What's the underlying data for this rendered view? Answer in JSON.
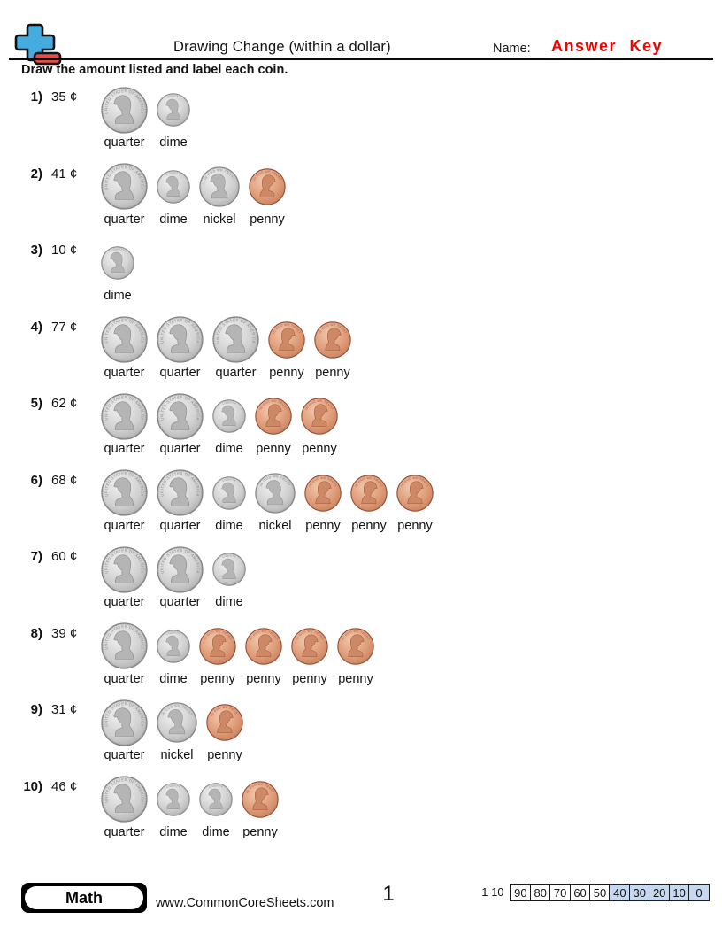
{
  "colors": {
    "answer_key": "#f60000",
    "score_highlight": "#c6d9f1",
    "logo_blue": "#45ace0",
    "logo_red": "#e24c4c",
    "silver_light": "#f2f2f2",
    "silver_mid": "#cfcfcf",
    "silver_dark": "#a9a9a9",
    "silver_rim": "#858585",
    "silver_bust": "#b5b5b5",
    "silver_bust_edge": "#8f8f8f",
    "silver_text": "#8a8a8a",
    "copper_light": "#f4c9ae",
    "copper_mid": "#dd9a76",
    "copper_dark": "#c27a57",
    "copper_rim": "#94492f",
    "copper_bust": "#cd8866",
    "copper_bust_edge": "#a3593c",
    "copper_text": "#a05a40"
  },
  "header": {
    "logo_icon": "commoncoresheets-plus-logo-icon",
    "title": "Drawing Change (within a dollar)",
    "name_label": "Name:",
    "name_value": "Answer Key",
    "instructions": "Draw the amount listed and label each coin."
  },
  "coin_types": {
    "quarter": {
      "size": 53,
      "metal": "silver",
      "facing": "left",
      "arc_text": "UNITED STATES OF AMERICA"
    },
    "nickel": {
      "size": 46,
      "metal": "silver",
      "facing": "left",
      "arc_text": "IN GOD WE TRUST"
    },
    "penny": {
      "size": 42,
      "metal": "copper",
      "facing": "right",
      "arc_text": "IN GOD WE TRUST"
    },
    "dime": {
      "size": 38,
      "metal": "silver",
      "facing": "left",
      "arc_text": "LIBERTY"
    }
  },
  "problems": [
    {
      "number": "1)",
      "amount": "35 ¢",
      "coins": [
        "quarter",
        "dime"
      ]
    },
    {
      "number": "2)",
      "amount": "41 ¢",
      "coins": [
        "quarter",
        "dime",
        "nickel",
        "penny"
      ]
    },
    {
      "number": "3)",
      "amount": "10 ¢",
      "coins": [
        "dime"
      ]
    },
    {
      "number": "4)",
      "amount": "77 ¢",
      "coins": [
        "quarter",
        "quarter",
        "quarter",
        "penny",
        "penny"
      ]
    },
    {
      "number": "5)",
      "amount": "62 ¢",
      "coins": [
        "quarter",
        "quarter",
        "dime",
        "penny",
        "penny"
      ]
    },
    {
      "number": "6)",
      "amount": "68 ¢",
      "coins": [
        "quarter",
        "quarter",
        "dime",
        "nickel",
        "penny",
        "penny",
        "penny"
      ]
    },
    {
      "number": "7)",
      "amount": "60 ¢",
      "coins": [
        "quarter",
        "quarter",
        "dime"
      ]
    },
    {
      "number": "8)",
      "amount": "39 ¢",
      "coins": [
        "quarter",
        "dime",
        "penny",
        "penny",
        "penny",
        "penny"
      ]
    },
    {
      "number": "9)",
      "amount": "31 ¢",
      "coins": [
        "quarter",
        "nickel",
        "penny"
      ]
    },
    {
      "number": "10)",
      "amount": "46 ¢",
      "coins": [
        "quarter",
        "dime",
        "dime",
        "penny"
      ]
    }
  ],
  "footer": {
    "subject_badge": "Math",
    "website": "www.CommonCoreSheets.com",
    "page_number": "1",
    "score_range_label": "1-10",
    "score_cells": [
      "90",
      "80",
      "70",
      "60",
      "50",
      "40",
      "30",
      "20",
      "10",
      "0"
    ],
    "score_highlighted_from_index": 5
  }
}
